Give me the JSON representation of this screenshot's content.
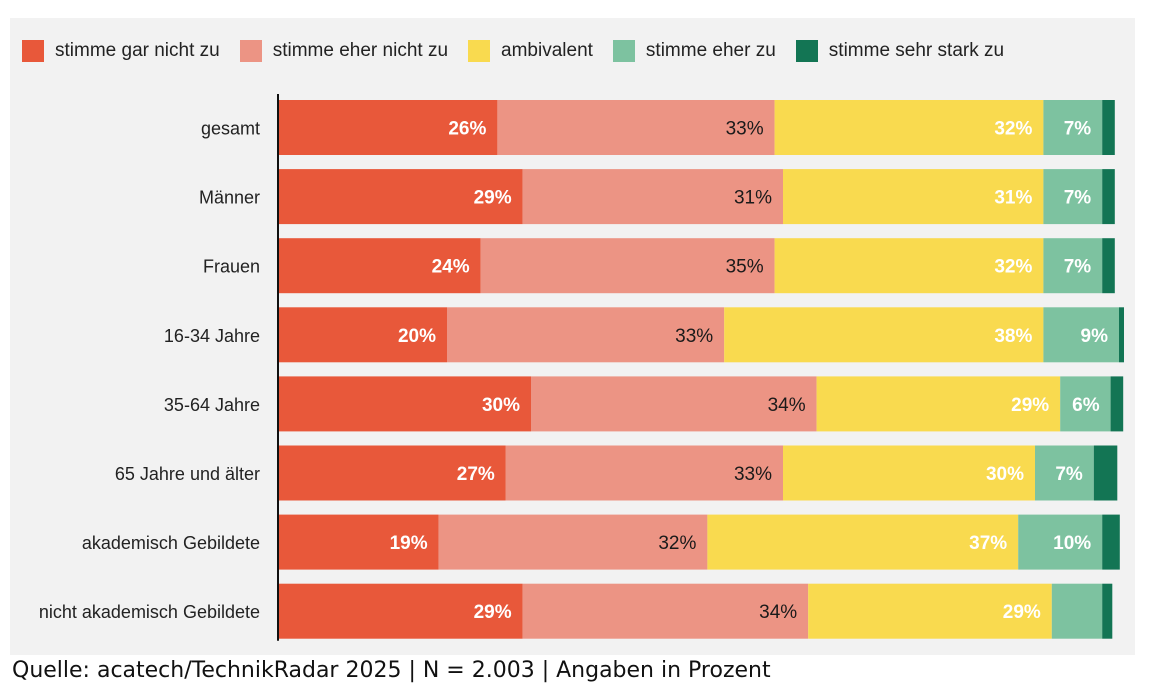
{
  "chart_data": {
    "type": "bar",
    "orientation": "horizontal",
    "stacked": true,
    "title": "",
    "xlabel": "",
    "ylabel": "",
    "xlim": [
      0,
      100
    ],
    "grid": false,
    "legend_position": "top-left",
    "categories": [
      "gesamt",
      "Männer",
      "Frauen",
      "16-34 Jahre",
      "35-64 Jahre",
      "65 Jahre und älter",
      "akademisch Gebildete",
      "nicht akademisch Gebildete"
    ],
    "series": [
      {
        "name": "stimme gar nicht zu",
        "color": "#e8583a",
        "label_color": "#ffffff",
        "values": [
          26,
          29,
          24,
          20,
          30,
          27,
          19,
          29
        ]
      },
      {
        "name": "stimme eher nicht zu",
        "color": "#ec9484",
        "label_color": "#1a1a1a",
        "values": [
          33,
          31,
          35,
          33,
          34,
          33,
          32,
          34
        ]
      },
      {
        "name": "ambivalent",
        "color": "#f9da4f",
        "label_color": "#ffffff",
        "values": [
          32,
          31,
          32,
          38,
          29,
          30,
          37,
          29
        ]
      },
      {
        "name": "stimme eher zu",
        "color": "#7dc2a0",
        "label_color": "#ffffff",
        "values": [
          7,
          7,
          7,
          9,
          6,
          7,
          10,
          6
        ]
      },
      {
        "name": "stimme sehr stark zu",
        "color": "#137554",
        "label_color": "#ffffff",
        "values": [
          1.5,
          1.5,
          1.5,
          0.6,
          1.5,
          2.8,
          2.1,
          1.2
        ]
      }
    ],
    "data_labels": [
      [
        "26%",
        "33%",
        "32%",
        "7%",
        ""
      ],
      [
        "29%",
        "31%",
        "31%",
        "7%",
        ""
      ],
      [
        "24%",
        "35%",
        "32%",
        "7%",
        ""
      ],
      [
        "20%",
        "33%",
        "38%",
        "9%",
        ""
      ],
      [
        "30%",
        "34%",
        "29%",
        "6%",
        ""
      ],
      [
        "27%",
        "33%",
        "30%",
        "7%",
        ""
      ],
      [
        "19%",
        "32%",
        "37%",
        "10%",
        ""
      ],
      [
        "29%",
        "34%",
        "29%",
        "",
        ""
      ]
    ]
  },
  "source_note": "Quelle: acatech/TechnikRadar 2025 | N = 2.003 | Angaben in Prozent"
}
